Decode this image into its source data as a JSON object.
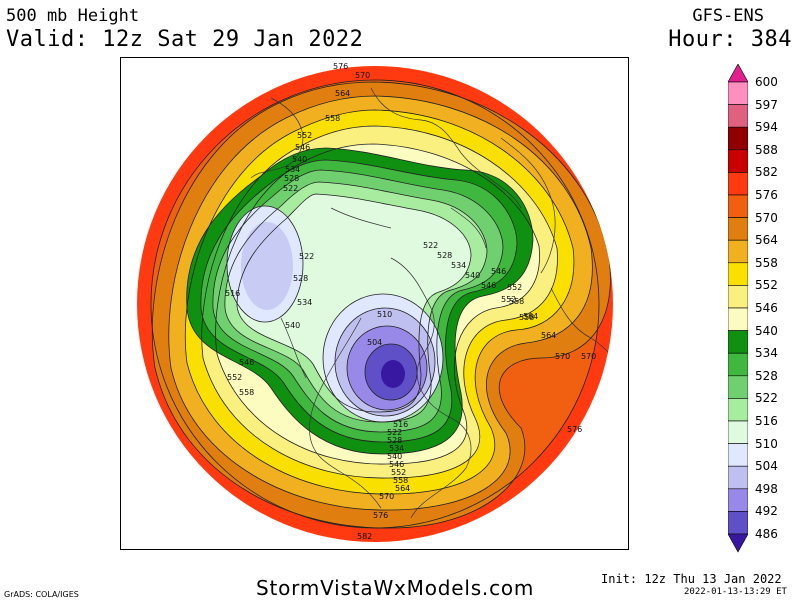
{
  "header": {
    "title_left": "500 mb Height",
    "valid": "Valid: 12z Sat 29 Jan 2022",
    "title_right": "GFS-ENS",
    "hour": "Hour: 384"
  },
  "legend": {
    "levels": [
      "600",
      "597",
      "594",
      "588",
      "582",
      "576",
      "570",
      "564",
      "558",
      "552",
      "546",
      "540",
      "534",
      "528",
      "522",
      "516",
      "510",
      "504",
      "498",
      "492",
      "486"
    ],
    "colors": [
      "#ff8fbf",
      "#e0607f",
      "#900000",
      "#c80000",
      "#ff3a10",
      "#f06010",
      "#e07e10",
      "#f0b020",
      "#fae000",
      "#faf080",
      "#fcfcc0",
      "#109010",
      "#40b840",
      "#70d070",
      "#a8eca0",
      "#e0fae0",
      "#e0e8ff",
      "#c0c0f0",
      "#9888e8",
      "#6050c8",
      "#3818a0"
    ],
    "top_color": "#e0208f",
    "bottom_color": "#3818a0"
  },
  "map": {
    "contour_labels": [
      "576",
      "570",
      "564",
      "558",
      "552",
      "546",
      "540",
      "534",
      "528",
      "522",
      "516",
      "522",
      "528",
      "534",
      "540",
      "546",
      "552",
      "558",
      "510",
      "504",
      "546",
      "552",
      "558",
      "564",
      "570",
      "576",
      "582",
      "576",
      "570",
      "564",
      "558",
      "552",
      "546",
      "540",
      "534",
      "528",
      "522",
      "516",
      "570",
      "564",
      "558",
      "552",
      "546",
      "540",
      "534",
      "528",
      "522"
    ]
  },
  "footer": {
    "site": "StormVistaWxModels.com",
    "init": "Init: 12z Thu 13 Jan 2022",
    "timestamp": "2022-01-13-13:29 ET",
    "grads": "GrADS: COLA/IGES"
  }
}
